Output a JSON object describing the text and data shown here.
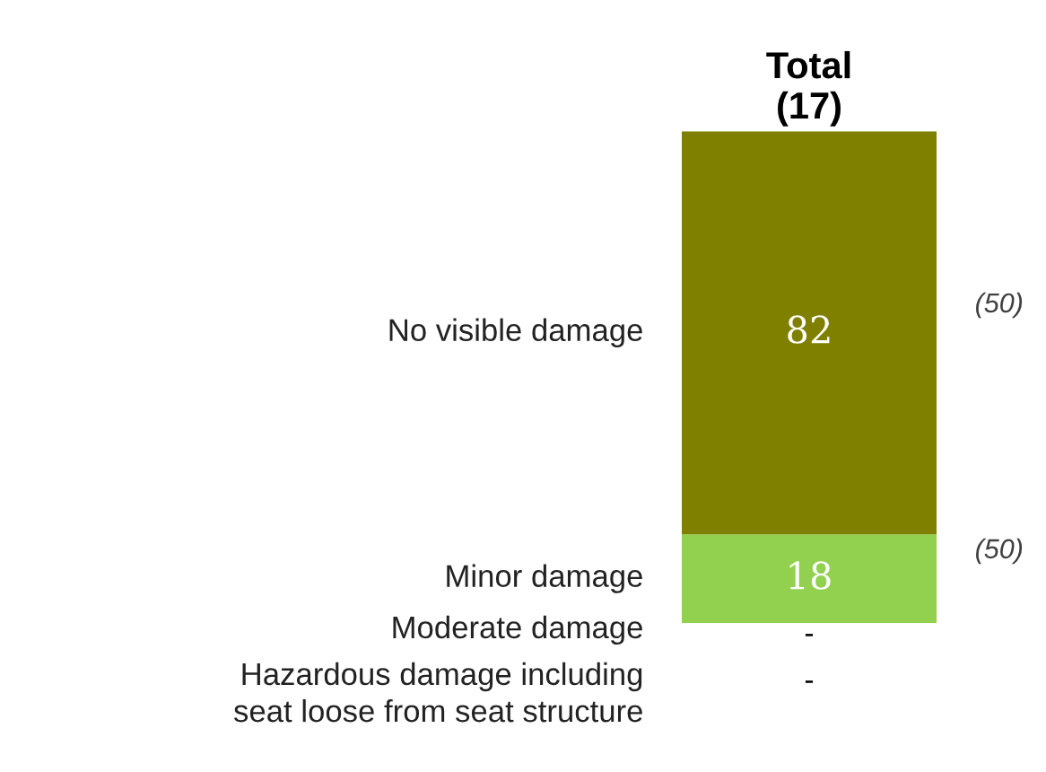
{
  "chart_data": {
    "type": "bar",
    "stacked": true,
    "categories": [
      "Total\n(17)"
    ],
    "series": [
      {
        "name": "Minor damage",
        "color": "#92d050",
        "values": [
          18
        ],
        "value_labels": [
          "18"
        ]
      },
      {
        "name": "No visible damage",
        "color": "#808000",
        "values": [
          82
        ],
        "value_labels": [
          "82"
        ]
      },
      {
        "name": "Moderate damage",
        "values": [
          null
        ]
      },
      {
        "name": "Hazardous damage including\nseat loose from seat structure",
        "values": [
          null
        ]
      }
    ],
    "annotations": [
      "(50)",
      "(50)",
      "-",
      "-"
    ],
    "legend": false,
    "grid": false
  }
}
